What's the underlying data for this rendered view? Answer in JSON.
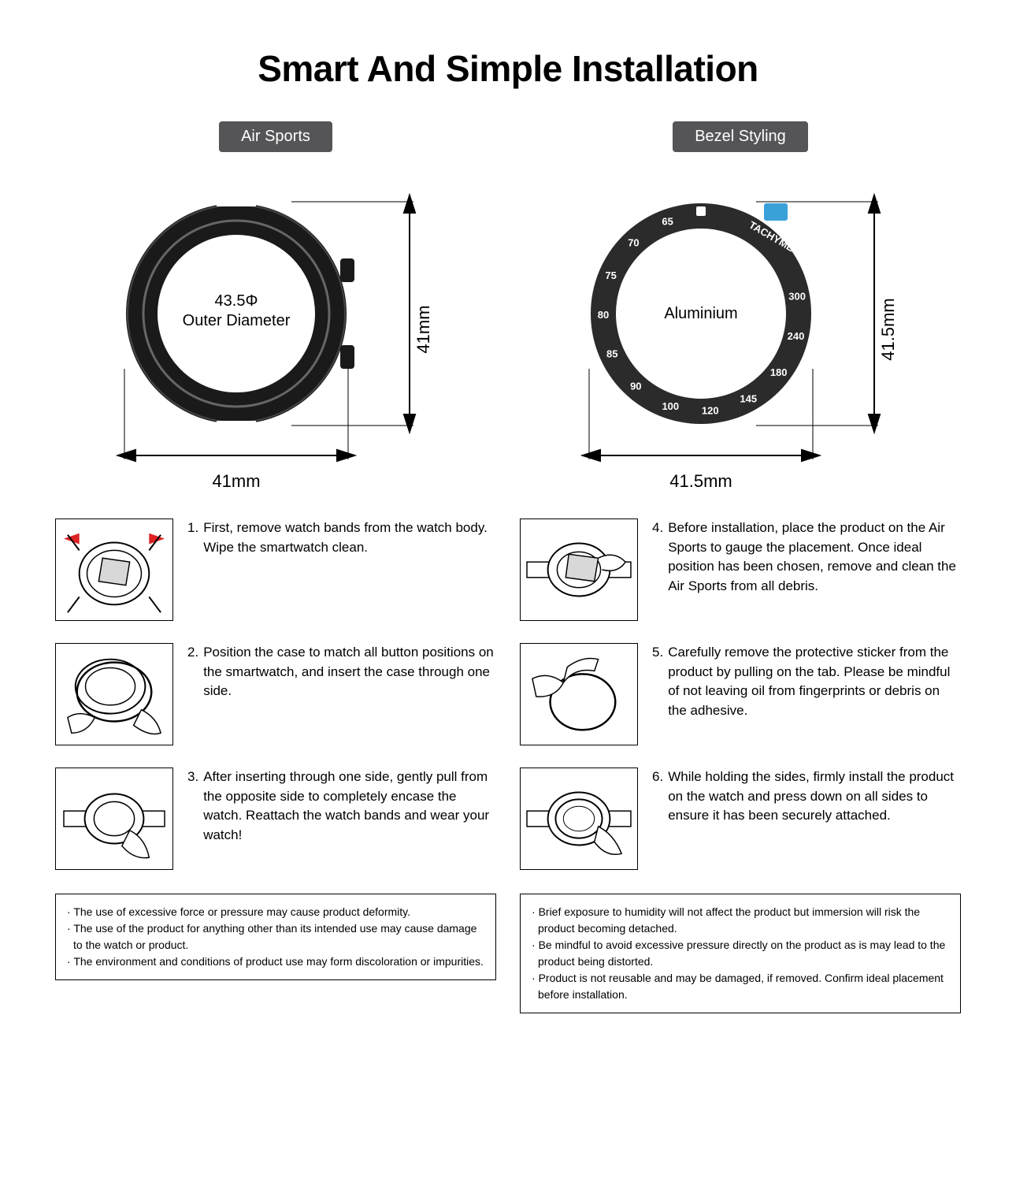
{
  "title": "Smart And Simple Installation",
  "columns": [
    {
      "tab": "Air Sports",
      "diagram": {
        "centerLine1": "43.5Φ",
        "centerLine2": "Outer Diameter",
        "widthLabel": "41mm",
        "heightLabel": "41mm",
        "ringOuterColor": "#1a1a1a",
        "ringInnerStroke": "#000000"
      },
      "steps": [
        {
          "num": "1.",
          "text": "First, remove watch bands from the watch body. Wipe the smartwatch clean."
        },
        {
          "num": "2.",
          "text": "Position the case to match all button positions on the smartwatch, and insert the case through one side."
        },
        {
          "num": "3.",
          "text": "After inserting through one side, gently pull from the opposite side to completely encase the watch. Reattach the watch bands and wear your watch!"
        }
      ],
      "notes": [
        "The use of excessive force or pressure may cause product deformity.",
        "The use of the product for anything other than its intended use may cause damage to the watch or product.",
        "The environment and conditions of product use may form discoloration or impurities."
      ]
    },
    {
      "tab": "Bezel Styling",
      "diagram": {
        "centerLine1": "Aluminium",
        "centerLine2": "",
        "widthLabel": "41.5mm",
        "heightLabel": "41.5mm",
        "tachyLabel": "TACHYMETER",
        "tachyNumbers": [
          "65",
          "70",
          "75",
          "80",
          "85",
          "90",
          "100",
          "120",
          "145",
          "180",
          "240",
          "300"
        ],
        "ringColor": "#2b2b2b",
        "tabColor": "#3aa0d8"
      },
      "steps": [
        {
          "num": "4.",
          "text": "Before installation, place the product on the Air Sports to gauge the placement. Once ideal position has been chosen, remove and clean the Air Sports from all debris."
        },
        {
          "num": "5.",
          "text": "Carefully remove the protective sticker from the product by pulling on the tab. Please be mindful of not leaving oil from fingerprints or debris on the adhesive."
        },
        {
          "num": "6.",
          "text": "While holding the sides, firmly install the product on the watch and press down on all sides to ensure it has been securely attached."
        }
      ],
      "notes": [
        "Brief exposure to humidity will not affect the product but immersion will risk the product becoming detached.",
        "Be mindful to avoid excessive pressure directly on the product as is may lead to the product being distorted.",
        "Product is not reusable and may be damaged, if removed. Confirm ideal placement before installation."
      ]
    }
  ]
}
